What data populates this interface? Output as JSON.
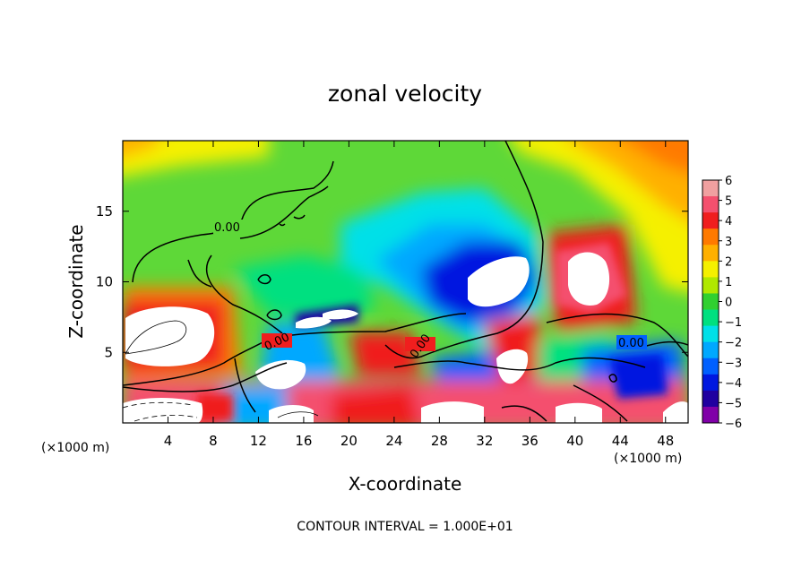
{
  "chart_data": {
    "type": "heatmap",
    "title": "zonal velocity",
    "xlabel": "X-coordinate",
    "ylabel": "Z-coordinate",
    "x_unit_label": "(×1000 m)",
    "y_unit_label": "(×1000 m)",
    "xlim": [
      0,
      50
    ],
    "ylim": [
      0,
      20
    ],
    "x_ticks": [
      4,
      8,
      12,
      16,
      20,
      24,
      28,
      32,
      36,
      40,
      44,
      48
    ],
    "y_ticks": [
      5,
      10,
      15
    ],
    "colorbar": {
      "min": -6,
      "max": 6,
      "ticks": [
        6,
        5,
        4,
        3,
        2,
        1,
        0,
        -1,
        -2,
        -3,
        -4,
        -5,
        -6
      ],
      "colors": [
        "#f0a0a0",
        "#f4506e",
        "#f01e1e",
        "#ff7a00",
        "#ffb000",
        "#f5f000",
        "#b0e800",
        "#30d030",
        "#00e080",
        "#00e0e8",
        "#00a8ff",
        "#0060ff",
        "#0018e0",
        "#2000a0",
        "#8000a8"
      ]
    },
    "contour_labels": [
      "0.00",
      "0.00",
      "0.00",
      "0.00"
    ],
    "footer": "CONTOUR INTERVAL = 1.000E+01",
    "grid": false
  }
}
